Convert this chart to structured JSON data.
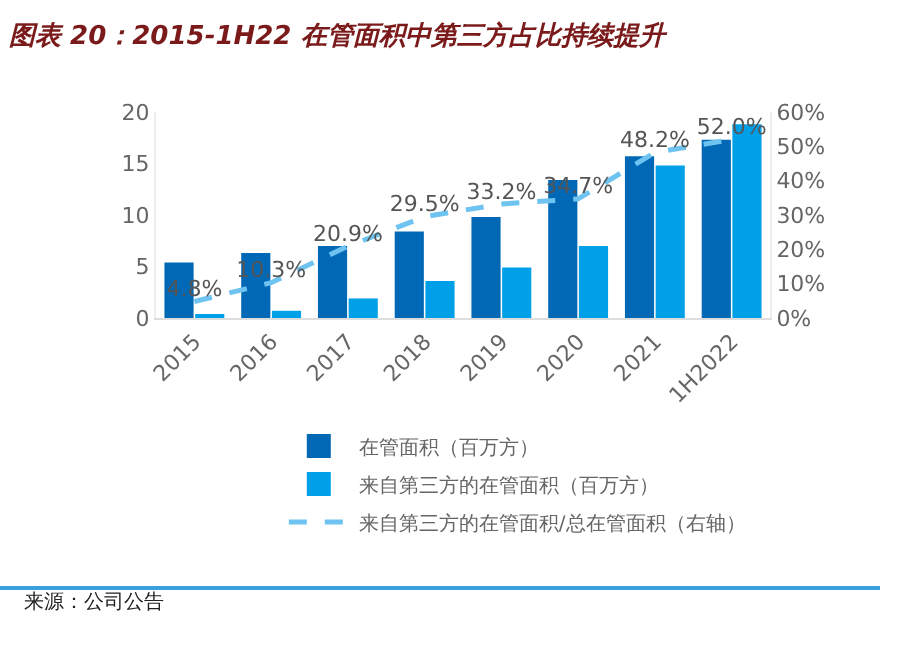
{
  "chart_data": {
    "type": "bar",
    "title": "图表 20：2015-1H22 在管面积中第三方占比持续提升",
    "categories": [
      "2015",
      "2016",
      "2017",
      "2018",
      "2019",
      "2020",
      "2021",
      "1H2022"
    ],
    "series": [
      {
        "name": "在管面积（百万方）",
        "color": "#0068b4",
        "values": [
          5.4,
          6.3,
          7.0,
          8.4,
          9.8,
          13.4,
          15.7,
          17.3
        ]
      },
      {
        "name": "来自第三方的在管面积（百万方）",
        "color": "#00a0e9",
        "values": [
          0.3,
          0.7,
          1.9,
          3.6,
          4.9,
          7.0,
          14.8,
          18.8
        ]
      },
      {
        "name": "来自第三方的在管面积/总在管面积（右轴）",
        "type": "line",
        "axis": "y2",
        "color": "#6ec3f0",
        "line_style": "dashed",
        "marker": "none",
        "values": [
          4.8,
          10.3,
          20.9,
          29.5,
          33.2,
          34.7,
          48.2,
          52.0
        ],
        "value_labels": [
          "4.8%",
          "10.3%",
          "20.9%",
          "29.5%",
          "33.2%",
          "34.7%",
          "48.2%",
          "52.0%"
        ]
      }
    ],
    "ylim": [
      0,
      20
    ],
    "yticks": [
      0,
      5,
      10,
      15,
      20
    ],
    "y2lim": [
      0,
      60
    ],
    "y2ticks": [
      {
        "value": 0,
        "label": "0%"
      },
      {
        "value": 10,
        "label": "10%"
      },
      {
        "value": 20,
        "label": "20%"
      },
      {
        "value": 30,
        "label": "30%"
      },
      {
        "value": 40,
        "label": "40%"
      },
      {
        "value": 50,
        "label": "50%"
      },
      {
        "value": 60,
        "label": "60%"
      }
    ],
    "grid": false,
    "legend": "bottom",
    "annotations": [
      "来源：公司公告"
    ]
  }
}
